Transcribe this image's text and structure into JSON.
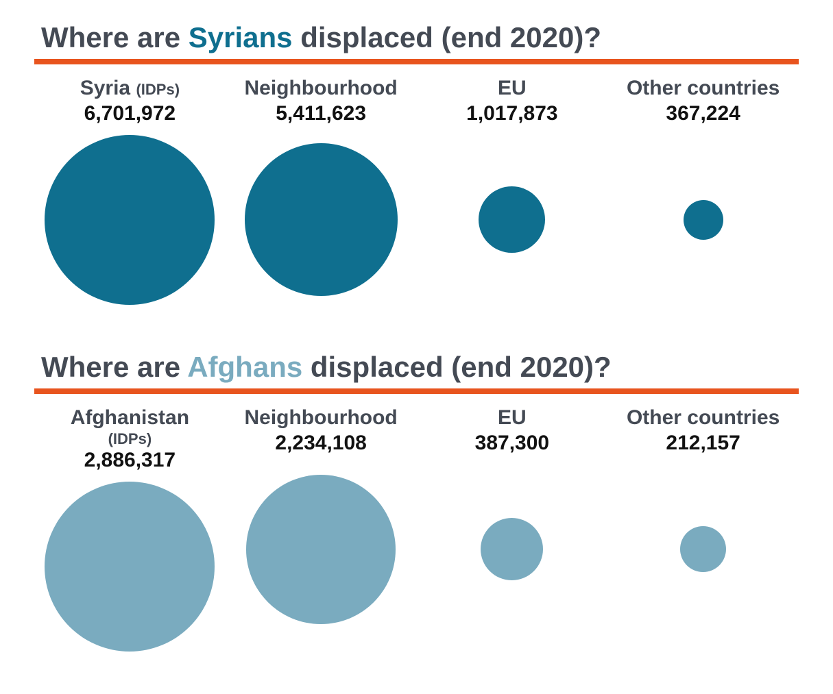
{
  "underline_color": "#e8541e",
  "title_color": "#444a54",
  "label_color": "#444a54",
  "value_color": "#111111",
  "sections": [
    {
      "type": "bubble-row",
      "title_pre": "Where are ",
      "title_highlight": "Syrians",
      "title_post": " displaced (end 2020)?",
      "highlight_color": "#0f6f8f",
      "bubble_color": "#0f6f8f",
      "bubble_area_height": 260,
      "max_bubble_diameter": 248,
      "items": [
        {
          "label": "Syria",
          "label_suffix": "(IDPs)",
          "value": 6701972,
          "value_text": "6,701,972"
        },
        {
          "label": "Neighbourhood",
          "value": 5411623,
          "value_text": "5,411,623"
        },
        {
          "label": "EU",
          "value": 1017873,
          "value_text": "1,017,873"
        },
        {
          "label": "Other countries",
          "value": 367224,
          "value_text": "367,224"
        }
      ]
    },
    {
      "type": "bubble-row",
      "title_pre": "Where are ",
      "title_highlight": "Afghans",
      "title_post": " displaced (end 2020)?",
      "highlight_color": "#7aabbf",
      "bubble_color": "#7aabbf",
      "bubble_area_height": 260,
      "max_bubble_diameter": 248,
      "items": [
        {
          "label": "Afghanistan",
          "label_suffix": "(IDPs)",
          "value": 2886317,
          "value_text": "2,886,317"
        },
        {
          "label": "Neighbourhood",
          "value": 2234108,
          "value_text": "2,234,108"
        },
        {
          "label": "EU",
          "value": 387300,
          "value_text": "387,300"
        },
        {
          "label": "Other countries",
          "value": 212157,
          "value_text": "212,157"
        }
      ]
    }
  ]
}
